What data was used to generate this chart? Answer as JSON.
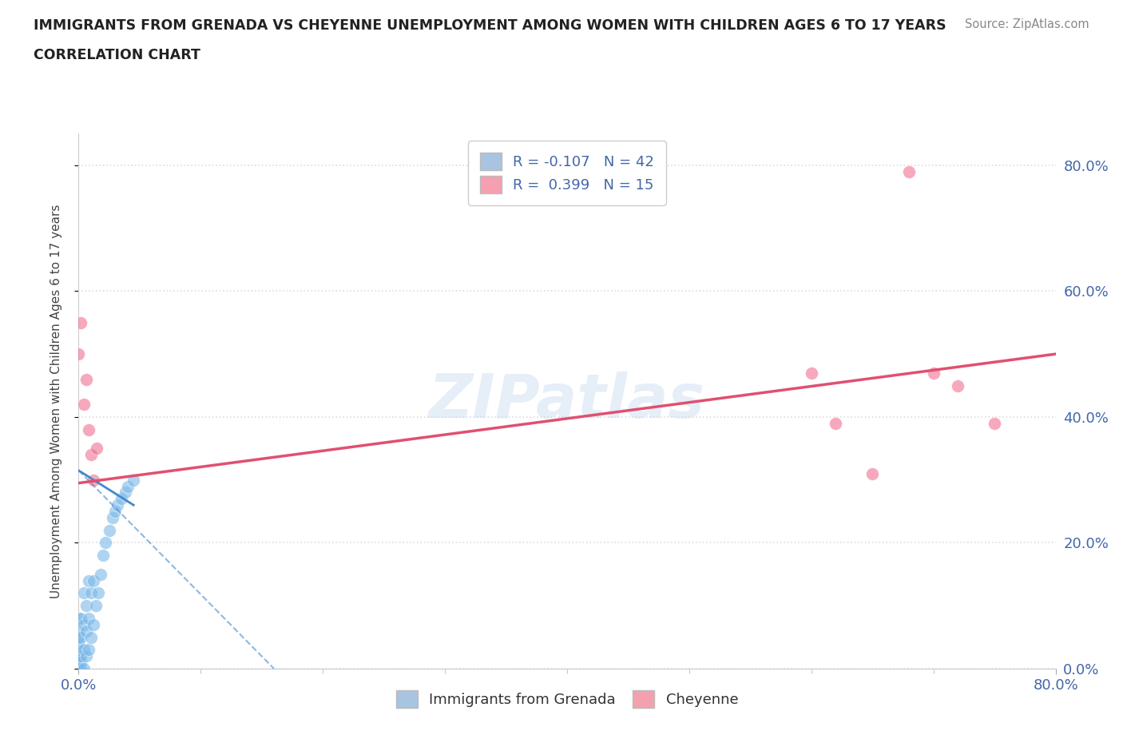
{
  "title_line1": "IMMIGRANTS FROM GRENADA VS CHEYENNE UNEMPLOYMENT AMONG WOMEN WITH CHILDREN AGES 6 TO 17 YEARS",
  "title_line2": "CORRELATION CHART",
  "source_text": "Source: ZipAtlas.com",
  "ylabel": "Unemployment Among Women with Children Ages 6 to 17 years",
  "xlim": [
    0.0,
    0.8
  ],
  "ylim": [
    0.0,
    0.85
  ],
  "ytick_labels": [
    "0.0%",
    "20.0%",
    "40.0%",
    "60.0%",
    "80.0%"
  ],
  "ytick_values": [
    0.0,
    0.2,
    0.4,
    0.6,
    0.8
  ],
  "xtick_labels": [
    "0.0%",
    "80.0%"
  ],
  "xtick_values": [
    0.0,
    0.8
  ],
  "watermark": "ZIPatlas",
  "legend_entries": [
    {
      "label": "R = -0.107   N = 42",
      "color": "#a8c4e0"
    },
    {
      "label": "R =  0.399   N = 15",
      "color": "#f4a0b0"
    }
  ],
  "legend_bottom_labels": [
    "Immigrants from Grenada",
    "Cheyenne"
  ],
  "legend_bottom_colors": [
    "#a8c4e0",
    "#f4a0b0"
  ],
  "blue_scatter_x": [
    0.0,
    0.0,
    0.0,
    0.0,
    0.0,
    0.0,
    0.0,
    0.0,
    0.0,
    0.0,
    0.002,
    0.002,
    0.002,
    0.002,
    0.002,
    0.004,
    0.004,
    0.004,
    0.004,
    0.006,
    0.006,
    0.006,
    0.008,
    0.008,
    0.008,
    0.01,
    0.01,
    0.012,
    0.012,
    0.014,
    0.016,
    0.018,
    0.02,
    0.022,
    0.025,
    0.028,
    0.03,
    0.032,
    0.035,
    0.038,
    0.04,
    0.045
  ],
  "blue_scatter_y": [
    0.0,
    0.0,
    0.0,
    0.01,
    0.02,
    0.03,
    0.04,
    0.05,
    0.06,
    0.08,
    0.0,
    0.01,
    0.02,
    0.05,
    0.08,
    0.0,
    0.03,
    0.07,
    0.12,
    0.02,
    0.06,
    0.1,
    0.03,
    0.08,
    0.14,
    0.05,
    0.12,
    0.07,
    0.14,
    0.1,
    0.12,
    0.15,
    0.18,
    0.2,
    0.22,
    0.24,
    0.25,
    0.26,
    0.27,
    0.28,
    0.29,
    0.3
  ],
  "pink_scatter_x": [
    0.0,
    0.002,
    0.004,
    0.006,
    0.008,
    0.01,
    0.012,
    0.015,
    0.6,
    0.62,
    0.65,
    0.68,
    0.7,
    0.72,
    0.75
  ],
  "pink_scatter_y": [
    0.5,
    0.55,
    0.42,
    0.46,
    0.38,
    0.34,
    0.3,
    0.35,
    0.47,
    0.39,
    0.31,
    0.79,
    0.47,
    0.45,
    0.39
  ],
  "blue_line_x": [
    0.0,
    0.045
  ],
  "blue_line_y": [
    0.315,
    0.26
  ],
  "blue_dashed_line_x": [
    0.0,
    0.16
  ],
  "blue_dashed_line_y": [
    0.315,
    0.0
  ],
  "pink_line_x": [
    0.0,
    0.8
  ],
  "pink_line_y": [
    0.295,
    0.5
  ],
  "scatter_size": 130,
  "scatter_alpha": 0.6,
  "scatter_color_blue": "#7ab8e8",
  "scatter_color_pink": "#f07090",
  "line_color_blue": "#4488cc",
  "line_color_pink": "#e05070",
  "grid_color": "#dddddd",
  "background_color": "#ffffff",
  "title_color": "#222222",
  "axis_label_color": "#444444",
  "tick_label_color": "#4466aa"
}
